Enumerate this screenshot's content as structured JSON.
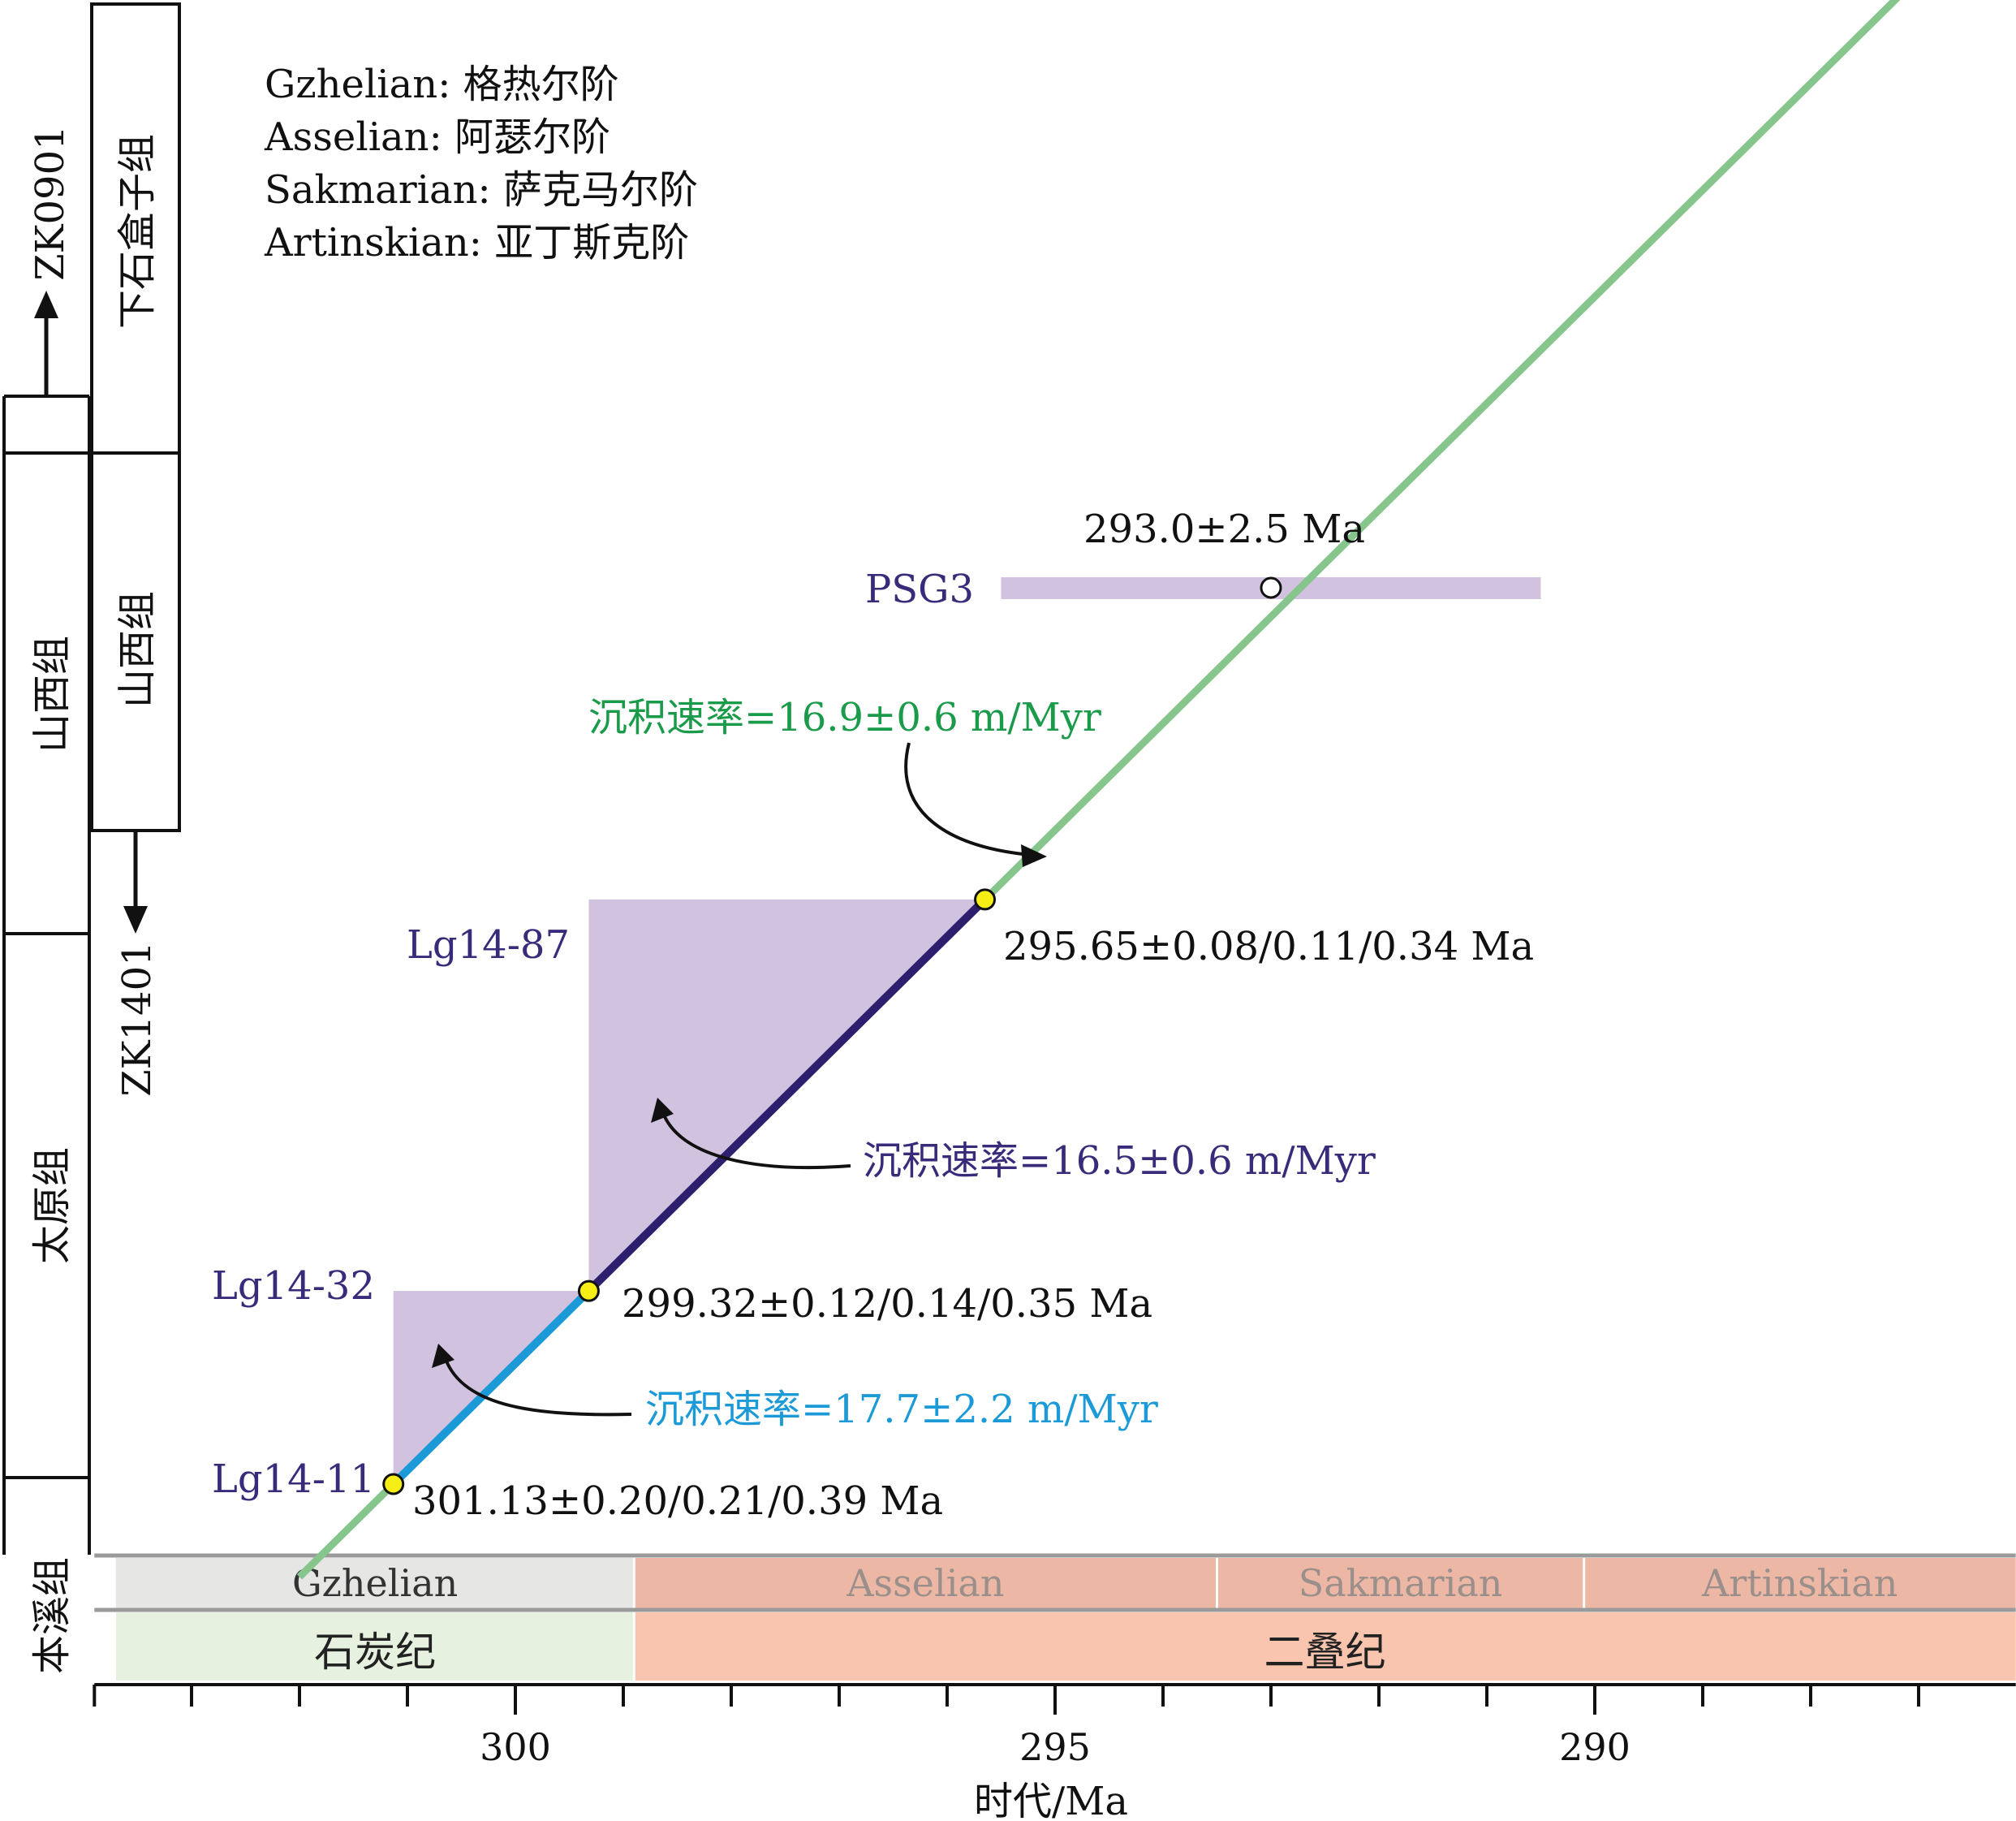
{
  "legend": {
    "items": [
      "Gzhelian: 格热尔阶",
      "Asselian: 阿瑟尔阶",
      "Sakmarian: 萨克马尔阶",
      "Artinskian: 亚丁斯克阶"
    ]
  },
  "strat_columns": {
    "outer": [
      "山西组",
      "太原组",
      "本溪组"
    ],
    "inner": [
      "下石盒子组",
      "山西组"
    ],
    "boreholes": [
      "ZK0901",
      "ZK1401"
    ]
  },
  "time_scale": {
    "stages": [
      {
        "name": "Gzhelian",
        "start": 303.7,
        "end": 298.9,
        "color": "#e6e6e4"
      },
      {
        "name": "Asselian",
        "start": 298.9,
        "end": 293.5,
        "color": "#ecb8a5"
      },
      {
        "name": "Sakmarian",
        "start": 293.5,
        "end": 290.1,
        "color": "#ecb8a5"
      },
      {
        "name": "Artinskian",
        "start": 290.1,
        "end": 286.1,
        "color": "#ecb8a5"
      }
    ],
    "periods": [
      {
        "name": "石炭纪",
        "start": 303.7,
        "end": 298.9,
        "color": "#e6f2df"
      },
      {
        "name": "二叠纪",
        "start": 298.9,
        "end": 286.1,
        "color": "#f9c5ae"
      }
    ]
  },
  "chart_data": {
    "type": "scatter",
    "xlabel": "时代/Ma",
    "x_reversed": true,
    "xlim": [
      303.9,
      286.1
    ],
    "xticks": [
      300,
      295,
      290
    ],
    "xtick_labels": [
      "300",
      "295",
      "290"
    ],
    "x_minor_step": 1,
    "samples": [
      {
        "name": "Lg14-11",
        "age": 301.13,
        "label": "301.13±0.20/0.21/0.39 Ma"
      },
      {
        "name": "Lg14-32",
        "age": 299.32,
        "label": "299.32±0.12/0.14/0.35 Ma"
      },
      {
        "name": "Lg14-87",
        "age": 295.65,
        "label": "295.65±0.08/0.11/0.34 Ma"
      },
      {
        "name": "PSG3",
        "age": 293.0,
        "err": 2.5,
        "label": "293.0±2.5 Ma"
      }
    ],
    "rates": [
      {
        "label": "沉积速率=17.7±2.2 m/Myr",
        "color": "#1b9ad7",
        "from": 301.13,
        "to": 299.32
      },
      {
        "label": "沉积速率=16.5±0.6 m/Myr",
        "color": "#2e1f6e",
        "from": 299.32,
        "to": 295.65
      },
      {
        "label": "沉积速率=16.9±0.6 m/Myr",
        "color": "#86c58c",
        "from": 302.0,
        "to": 285.6
      }
    ],
    "colors": {
      "box": "#d1c3df",
      "marker": "#f6ee14"
    }
  }
}
